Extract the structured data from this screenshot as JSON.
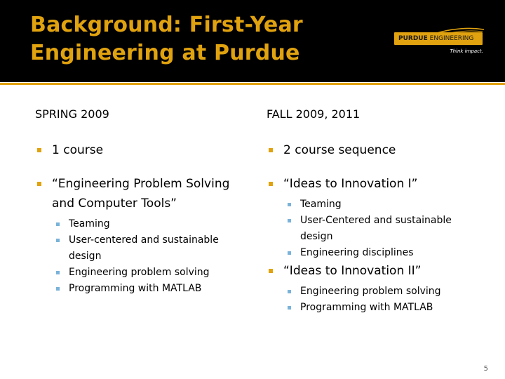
{
  "slide": {
    "title_line1": "Background: First-Year",
    "title_line2": "Engineering at Purdue",
    "logo": {
      "bold": "PURDUE",
      "rest": " ENGINEERING",
      "tagline": "Think impact."
    },
    "page_number": "5"
  },
  "left": {
    "heading": "SPRING 2009",
    "items": [
      {
        "text": "1 course",
        "sub": []
      },
      {
        "text": "“Engineering Problem Solving and Computer Tools”",
        "sub": [
          "Teaming",
          "User-centered and sustainable design",
          "Engineering problem solving",
          "Programming with MATLAB"
        ]
      }
    ]
  },
  "right": {
    "heading": "FALL 2009, 2011",
    "items": [
      {
        "text": "2 course sequence",
        "sub": []
      },
      {
        "text": "“Ideas to Innovation I”",
        "sub": [
          "Teaming",
          "User-Centered and sustainable design",
          "Engineering disciplines"
        ]
      },
      {
        "text": "“Ideas to Innovation II”",
        "sub": [
          "Engineering problem solving",
          "Programming with MATLAB"
        ]
      }
    ]
  },
  "colors": {
    "header_bg": "#000000",
    "accent_gold": "#e0a20f",
    "sub_bullet": "#7ab3d9"
  }
}
